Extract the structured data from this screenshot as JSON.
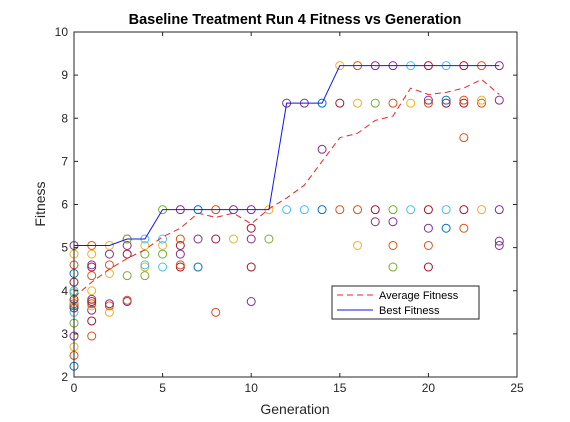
{
  "chart_data": {
    "type": "scatter",
    "title": "Baseline Treatment Run 4 Fitness vs Generation",
    "xlabel": "Generation",
    "ylabel": "Fitness",
    "xlim": [
      0,
      25
    ],
    "ylim": [
      2,
      10
    ],
    "xticks": [
      "0",
      "5",
      "10",
      "15",
      "20",
      "25"
    ],
    "yticks": [
      "2",
      "3",
      "4",
      "5",
      "6",
      "7",
      "8",
      "9",
      "10"
    ],
    "grid": false,
    "legend_position": "inside lower-right",
    "series": [
      {
        "name": "Average Fitness",
        "style": "dashed",
        "color": "#e8262b",
        "x": [
          0,
          1,
          2,
          3,
          4,
          5,
          6,
          7,
          8,
          9,
          10,
          11,
          12,
          13,
          14,
          15,
          16,
          17,
          18,
          19,
          20,
          21,
          22,
          23,
          24
        ],
        "values": [
          3.85,
          4.2,
          4.5,
          4.75,
          4.95,
          5.25,
          5.45,
          5.8,
          5.7,
          5.8,
          5.55,
          5.9,
          6.15,
          6.45,
          7.0,
          7.55,
          7.65,
          7.95,
          8.05,
          8.7,
          8.55,
          8.6,
          8.7,
          8.9,
          8.55
        ]
      },
      {
        "name": "Best Fitness",
        "style": "solid",
        "color": "#1414e6",
        "x": [
          0,
          1,
          2,
          3,
          4,
          5,
          6,
          7,
          8,
          9,
          10,
          11,
          12,
          13,
          14,
          15,
          16,
          17,
          18,
          19,
          20,
          21,
          22,
          23,
          24
        ],
        "values": [
          5.05,
          5.05,
          5.05,
          5.2,
          5.2,
          5.88,
          5.88,
          5.88,
          5.88,
          5.88,
          5.88,
          5.88,
          8.35,
          8.35,
          8.35,
          9.22,
          9.22,
          9.22,
          9.22,
          9.22,
          9.22,
          9.22,
          9.22,
          9.22,
          9.22
        ]
      }
    ],
    "individuals": [
      {
        "g": 0,
        "colors": [
          "#0072bd",
          "#d95319",
          "#edb120",
          "#7e2f8e",
          "#77ac30",
          "#4dbeee",
          "#a2142f"
        ],
        "values": [
          2.25,
          2.5,
          2.7,
          2.95,
          3.25,
          3.5,
          3.6,
          3.65,
          3.7,
          3.75,
          3.8,
          3.95,
          4.0,
          4.2,
          4.4,
          4.6,
          4.85,
          5.05
        ]
      },
      {
        "g": 1,
        "colors": [
          "#d95319",
          "#a2142f",
          "#7e2f8e",
          "#edb120"
        ],
        "values": [
          2.95,
          3.3,
          3.55,
          3.65,
          3.7,
          3.75,
          3.8,
          4.0,
          4.35,
          4.55,
          4.6,
          4.85,
          5.05
        ]
      },
      {
        "g": 2,
        "colors": [
          "#edb120",
          "#d95319",
          "#7e2f8e"
        ],
        "values": [
          3.5,
          3.65,
          3.7,
          4.4,
          4.6,
          4.85,
          5.05
        ]
      },
      {
        "g": 3,
        "colors": [
          "#7e2f8e",
          "#d95319",
          "#77ac30",
          "#a2142f"
        ],
        "values": [
          3.75,
          3.78,
          4.35,
          4.85,
          5.05,
          5.2,
          5.2
        ]
      },
      {
        "g": 4,
        "colors": [
          "#77ac30",
          "#edb120",
          "#4dbeee"
        ],
        "values": [
          4.35,
          4.55,
          4.6,
          4.85,
          5.05,
          5.2
        ]
      },
      {
        "g": 5,
        "colors": [
          "#4dbeee",
          "#77ac30",
          "#edb120"
        ],
        "values": [
          4.55,
          4.85,
          5.05,
          5.2,
          5.88
        ]
      },
      {
        "g": 6,
        "colors": [
          "#a2142f",
          "#d95319",
          "#7e2f8e"
        ],
        "values": [
          4.55,
          4.6,
          4.85,
          5.05,
          5.2,
          5.88
        ]
      },
      {
        "g": 7,
        "colors": [
          "#0072bd",
          "#7e2f8e"
        ],
        "values": [
          4.55,
          5.2,
          5.88
        ]
      },
      {
        "g": 8,
        "colors": [
          "#d95319",
          "#a2142f"
        ],
        "values": [
          3.5,
          5.2,
          5.88
        ]
      },
      {
        "g": 9,
        "colors": [
          "#edb120",
          "#7e2f8e"
        ],
        "values": [
          5.2,
          5.88
        ]
      },
      {
        "g": 10,
        "colors": [
          "#7e2f8e",
          "#a2142f"
        ],
        "values": [
          3.75,
          4.55,
          5.2,
          5.45,
          5.88
        ]
      },
      {
        "g": 11,
        "colors": [
          "#77ac30",
          "#edb120"
        ],
        "values": [
          5.2,
          5.88
        ]
      },
      {
        "g": 12,
        "colors": [
          "#4dbeee",
          "#7e2f8e"
        ],
        "values": [
          5.88,
          8.35
        ]
      },
      {
        "g": 13,
        "colors": [
          "#4dbeee",
          "#7e2f8e"
        ],
        "values": [
          5.88,
          8.35
        ]
      },
      {
        "g": 14,
        "colors": [
          "#0072bd",
          "#7e2f8e"
        ],
        "values": [
          5.88,
          7.28,
          8.35
        ]
      },
      {
        "g": 15,
        "colors": [
          "#d95319",
          "#a2142f",
          "#edb120"
        ],
        "values": [
          5.88,
          8.35,
          9.22
        ]
      },
      {
        "g": 16,
        "colors": [
          "#edb120",
          "#d95319"
        ],
        "values": [
          5.05,
          5.88,
          8.35,
          9.22
        ]
      },
      {
        "g": 17,
        "colors": [
          "#7e2f8e",
          "#a2142f",
          "#77ac30"
        ],
        "values": [
          5.6,
          5.88,
          8.35,
          9.22
        ]
      },
      {
        "g": 18,
        "colors": [
          "#77ac30",
          "#d95319",
          "#7e2f8e"
        ],
        "values": [
          4.55,
          5.05,
          5.6,
          5.88,
          8.35,
          9.22
        ]
      },
      {
        "g": 19,
        "colors": [
          "#4dbeee",
          "#edb120"
        ],
        "values": [
          5.88,
          8.35,
          9.22
        ]
      },
      {
        "g": 20,
        "colors": [
          "#a2142f",
          "#d95319",
          "#7e2f8e"
        ],
        "values": [
          4.55,
          5.05,
          5.45,
          5.88,
          8.35,
          8.42,
          9.22
        ]
      },
      {
        "g": 21,
        "colors": [
          "#0072bd",
          "#4dbeee",
          "#a2142f"
        ],
        "values": [
          5.45,
          5.88,
          8.35,
          8.42,
          9.22
        ]
      },
      {
        "g": 22,
        "colors": [
          "#d95319",
          "#a2142f"
        ],
        "values": [
          5.45,
          5.88,
          7.55,
          8.35,
          8.42,
          9.22
        ]
      },
      {
        "g": 23,
        "colors": [
          "#edb120",
          "#d95319"
        ],
        "values": [
          5.88,
          8.35,
          8.42,
          9.22
        ]
      },
      {
        "g": 24,
        "colors": [
          "#7e2f8e"
        ],
        "values": [
          5.05,
          5.15,
          5.88,
          8.42,
          9.22
        ]
      }
    ]
  }
}
